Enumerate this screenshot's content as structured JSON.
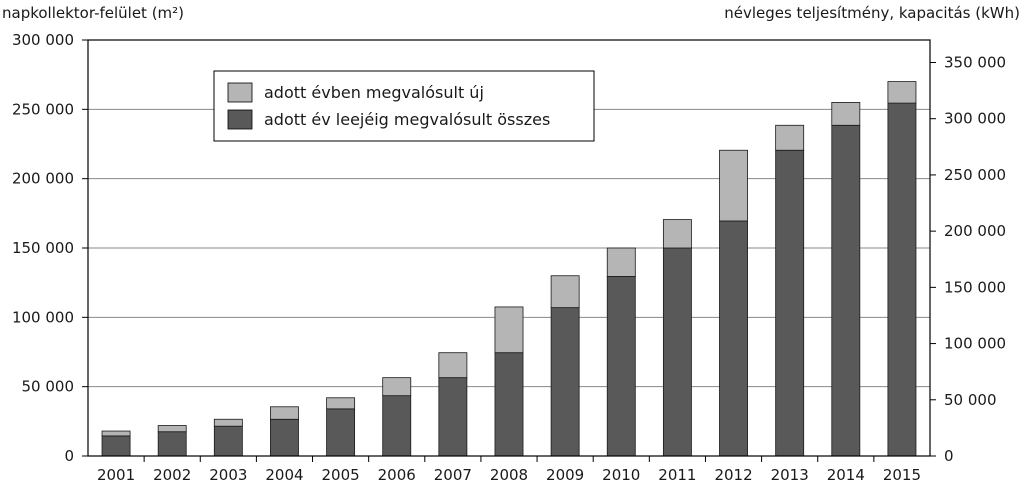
{
  "chart_data": {
    "type": "bar",
    "stacked": true,
    "y_left_label": "napkollektor-felület (m²)",
    "y_right_label": "névleges teljesítmény, kapacitás (kWh)",
    "categories": [
      "2001",
      "2002",
      "2003",
      "2004",
      "2005",
      "2006",
      "2007",
      "2008",
      "2009",
      "2010",
      "2011",
      "2012",
      "2013",
      "2014",
      "2015"
    ],
    "series": [
      {
        "name": "adott év leejéig megvalósult összes",
        "color": "#595959",
        "values": [
          14500,
          17500,
          21500,
          26500,
          34000,
          43500,
          56500,
          74500,
          107000,
          129500,
          150000,
          169500,
          220500,
          238500,
          254500
        ]
      },
      {
        "name": "adott évben megvalósult új",
        "color": "#b5b5b5",
        "values": [
          3500,
          4500,
          5000,
          9000,
          8000,
          13000,
          18000,
          33000,
          23000,
          20500,
          20500,
          51000,
          18000,
          16500,
          15500
        ]
      }
    ],
    "y_left": {
      "range": [
        0,
        300000
      ],
      "ticks": [
        0,
        50000,
        100000,
        150000,
        200000,
        250000,
        300000
      ],
      "tick_labels": [
        "0",
        "50 000",
        "100 000",
        "150 000",
        "200 000",
        "250 000",
        "300 000"
      ]
    },
    "y_right": {
      "range": [
        0,
        370000
      ],
      "ticks": [
        0,
        50000,
        100000,
        150000,
        200000,
        250000,
        300000,
        350000
      ],
      "tick_labels": [
        "0",
        "50 000",
        "100 000",
        "150 000",
        "200 000",
        "250 000",
        "300 000",
        "350 000"
      ]
    },
    "grid": true,
    "legend_position": "top-left",
    "legend": [
      {
        "label": "adott évben megvalósult új",
        "color": "#b5b5b5"
      },
      {
        "label": "adott év leejéig megvalósult összes",
        "color": "#595959"
      }
    ]
  }
}
